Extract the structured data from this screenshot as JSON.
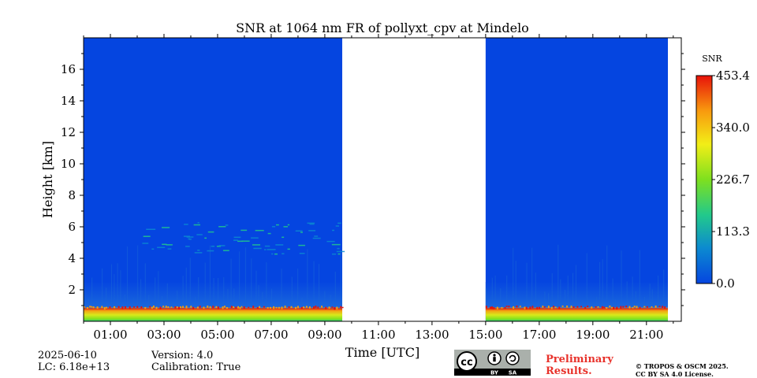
{
  "chart_data": {
    "type": "heatmap",
    "title": "SNR at 1064 nm FR of pollyxt_cpv at Mindelo",
    "xlabel": "Time [UTC]",
    "ylabel": "Height [km]",
    "xlim_hours": [
      0,
      22.3
    ],
    "ylim_km": [
      0,
      18
    ],
    "x_ticks": [
      {
        "hour": 1,
        "label": "01:00"
      },
      {
        "hour": 3,
        "label": "03:00"
      },
      {
        "hour": 5,
        "label": "05:00"
      },
      {
        "hour": 7,
        "label": "07:00"
      },
      {
        "hour": 9,
        "label": "09:00"
      },
      {
        "hour": 11,
        "label": "11:00"
      },
      {
        "hour": 13,
        "label": "13:00"
      },
      {
        "hour": 15,
        "label": "15:00"
      },
      {
        "hour": 17,
        "label": "17:00"
      },
      {
        "hour": 19,
        "label": "19:00"
      },
      {
        "hour": 21,
        "label": "21:00"
      }
    ],
    "y_ticks": [
      {
        "km": 2,
        "label": "2"
      },
      {
        "km": 4,
        "label": "4"
      },
      {
        "km": 6,
        "label": "6"
      },
      {
        "km": 8,
        "label": "8"
      },
      {
        "km": 10,
        "label": "10"
      },
      {
        "km": 12,
        "label": "12"
      },
      {
        "km": 14,
        "label": "14"
      },
      {
        "km": 16,
        "label": "16"
      }
    ],
    "data_segments_hours": [
      [
        0,
        9.65
      ],
      [
        15.0,
        21.8
      ]
    ],
    "no_data_gap_hours": [
      9.65,
      15.0
    ],
    "aerosol_layer_km": [
      4.3,
      6.3
    ],
    "strong_signal_layer_km": [
      0,
      0.9
    ],
    "colorbar": {
      "label": "SNR",
      "min": 0.0,
      "max": 453.4,
      "ticks": [
        "0.0",
        "113.3",
        "226.7",
        "340.0",
        "453.4"
      ],
      "colors": [
        "#0545e0",
        "#0c8ad0",
        "#22c98b",
        "#7ee01f",
        "#f2ee17",
        "#f89a0e",
        "#e8120a"
      ]
    }
  },
  "footer": {
    "date": "2025-06-10",
    "lc": "LC: 6.18e+13",
    "version": "Version: 4.0",
    "calibration": "Calibration: True",
    "preliminary_line1": "Preliminary",
    "preliminary_line2": "Results.",
    "copyright_line1": "© TROPOS & OSCM 2025.",
    "copyright_line2": "CC BY SA 4.0 License.",
    "cc_by": "BY",
    "cc_sa": "SA",
    "cc_mark": "cc"
  }
}
